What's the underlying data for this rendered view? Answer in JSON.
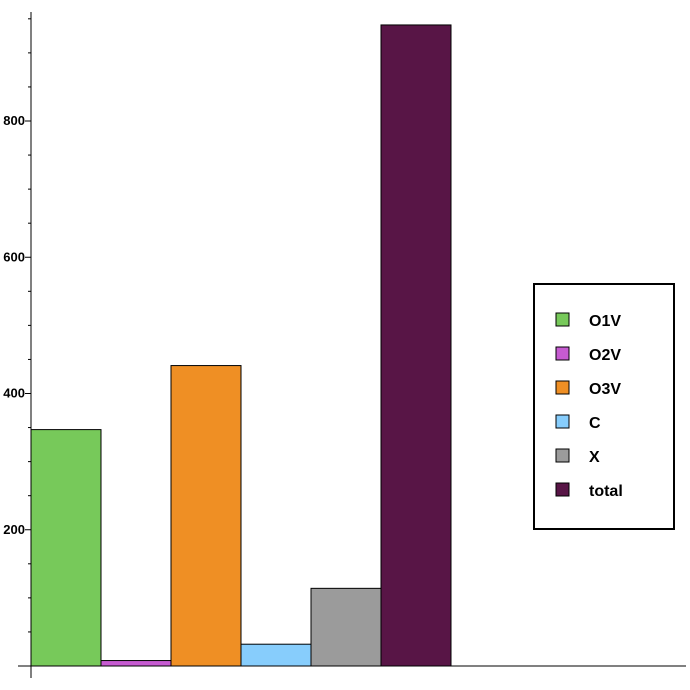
{
  "chart_data": {
    "type": "bar",
    "title": "",
    "xlabel": "",
    "ylabel": "",
    "ylim": [
      0,
      955
    ],
    "y_ticks": [
      200,
      400,
      600,
      800
    ],
    "grid": false,
    "legend_position": "right",
    "categories": [
      "O1V",
      "O2V",
      "O3V",
      "C",
      "X",
      "total"
    ],
    "values": [
      347,
      8,
      441,
      32,
      114,
      941
    ],
    "colors": [
      "#77C95A",
      "#C65BD1",
      "#EF8F24",
      "#87CDFC",
      "#9B9B9B",
      "#581546"
    ]
  }
}
